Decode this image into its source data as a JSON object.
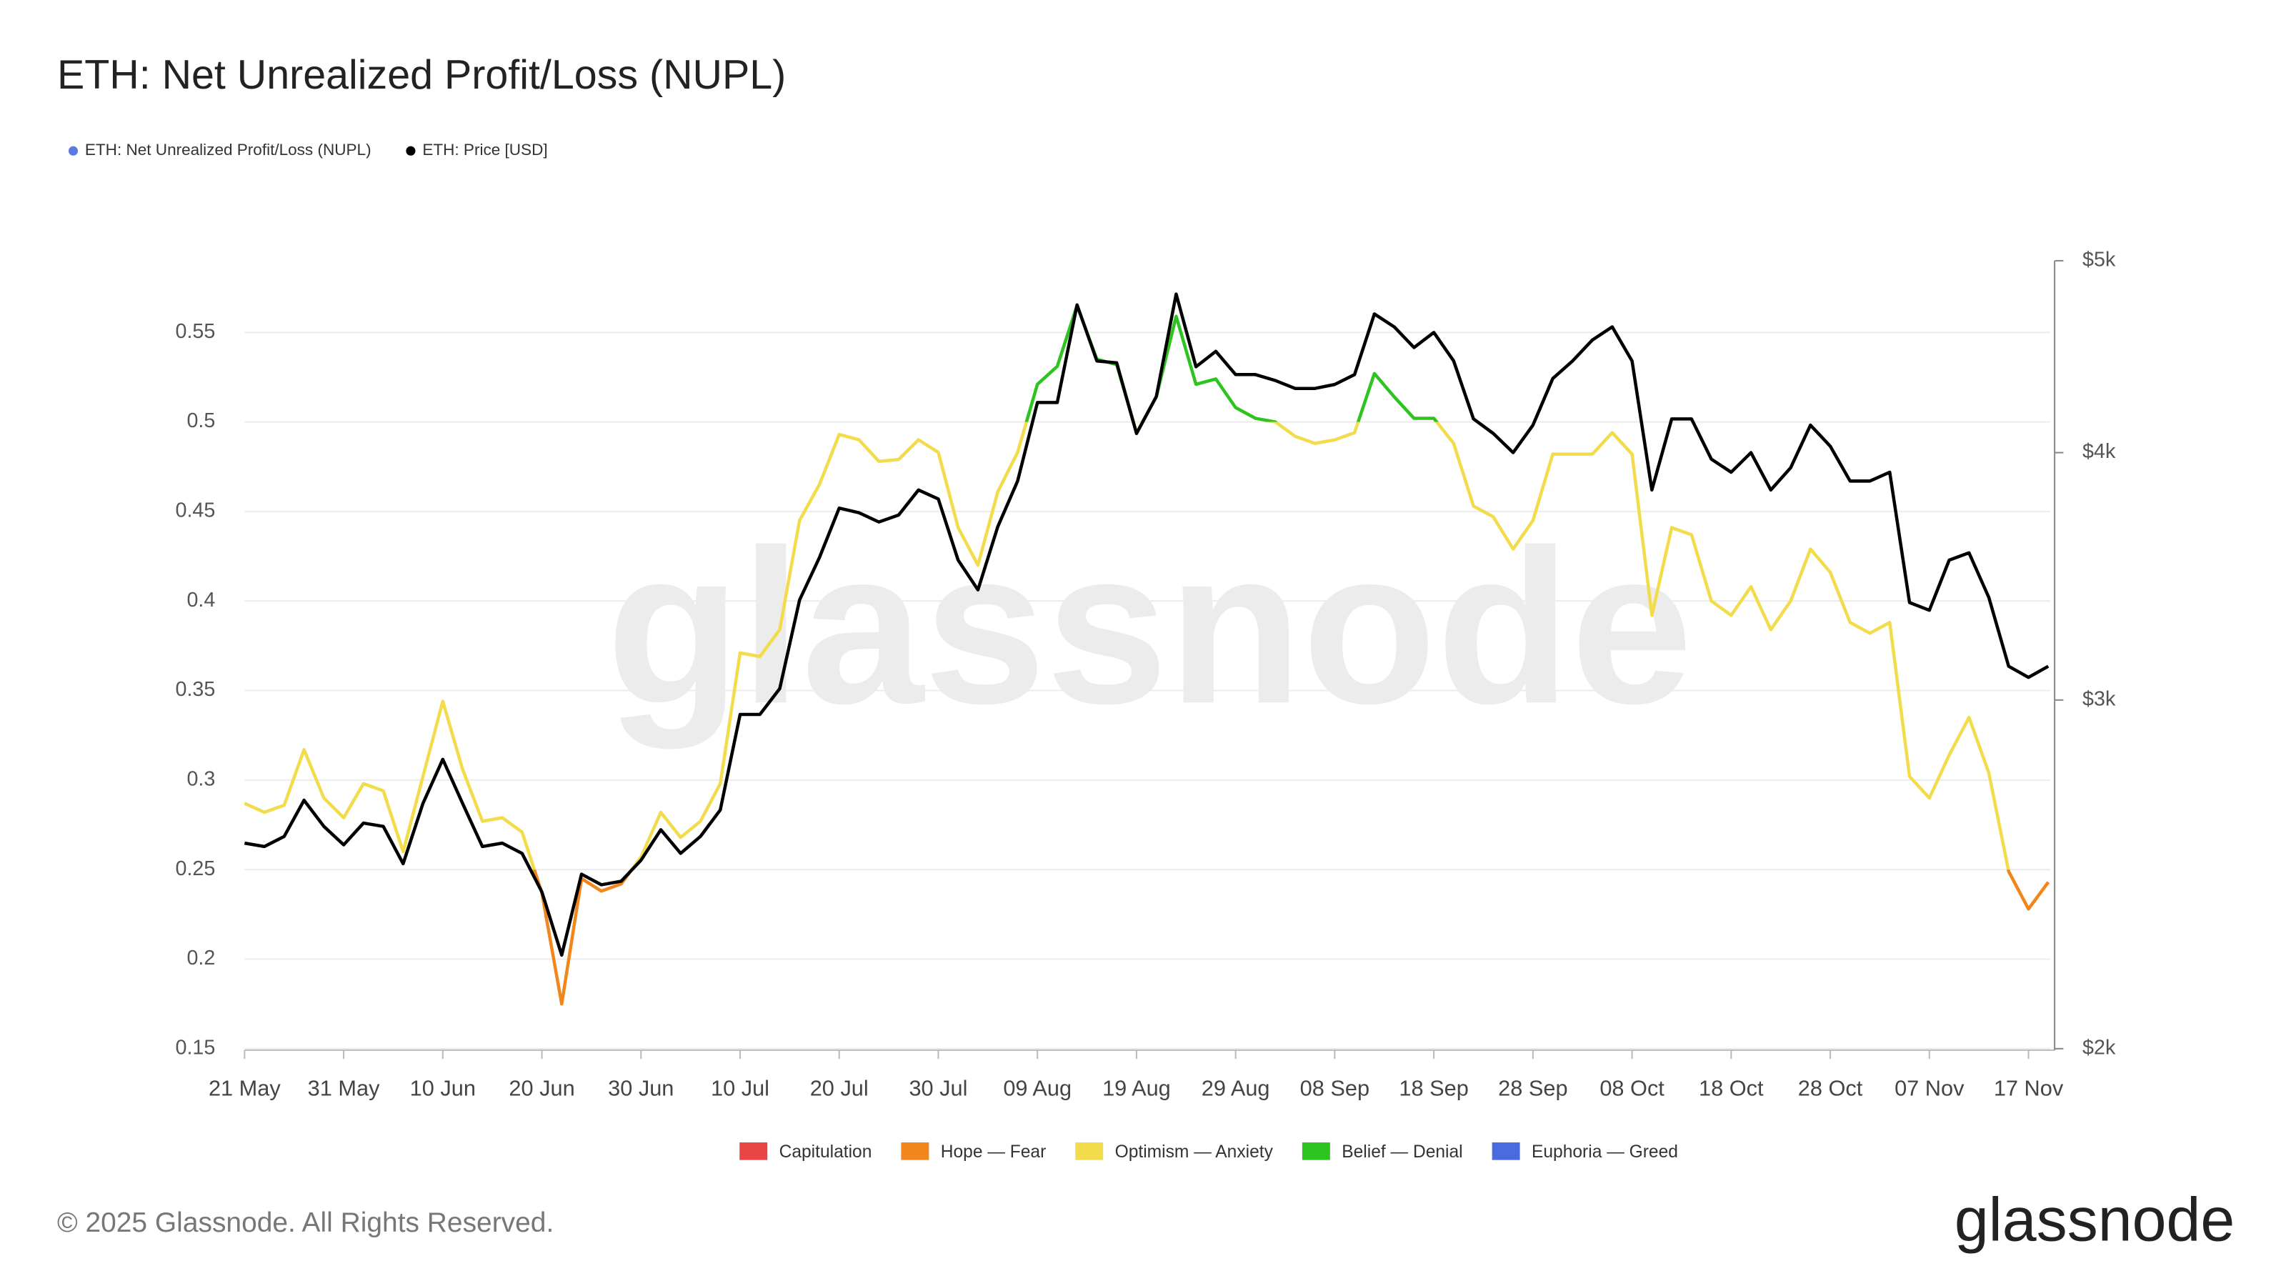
{
  "chart_data": {
    "type": "line",
    "title": "ETH: Net Unrealized Profit/Loss (NUPL)",
    "categories": [
      "21 May",
      null,
      null,
      null,
      null,
      "31 May",
      null,
      null,
      null,
      null,
      "10 Jun",
      null,
      null,
      null,
      null,
      "20 Jun",
      null,
      null,
      null,
      null,
      "30 Jun",
      null,
      null,
      null,
      null,
      "10 Jul",
      null,
      null,
      null,
      null,
      "20 Jul",
      null,
      null,
      null,
      null,
      "30 Jul",
      null,
      null,
      null,
      null,
      "09 Aug",
      null,
      null,
      null,
      null,
      "19 Aug",
      null,
      null,
      null,
      null,
      "29 Aug",
      null,
      null,
      null,
      null,
      "08 Sep",
      null,
      null,
      null,
      null,
      "18 Sep",
      null,
      null,
      null,
      null,
      "28 Sep",
      null,
      null,
      null,
      null,
      "08 Oct",
      null,
      null,
      null,
      null,
      "18 Oct",
      null,
      null,
      null,
      null,
      "28 Oct",
      null,
      null,
      null,
      null,
      "07 Nov",
      null,
      null,
      null,
      null,
      "17 Nov",
      null
    ],
    "series": [
      {
        "name": "ETH: Net Unrealized Profit/Loss (NUPL)",
        "color": "#5b7be0",
        "values": [
          0.287,
          0.282,
          0.286,
          0.317,
          0.29,
          0.279,
          0.298,
          0.294,
          0.26,
          0.302,
          0.344,
          0.306,
          0.277,
          0.279,
          0.271,
          0.237,
          0.175,
          0.245,
          0.238,
          0.242,
          0.257,
          0.282,
          0.268,
          0.277,
          0.298,
          0.371,
          0.369,
          0.384,
          0.445,
          0.465,
          0.493,
          0.49,
          0.478,
          0.479,
          0.49,
          0.483,
          0.441,
          0.42,
          0.461,
          0.483,
          0.521,
          0.531,
          0.565,
          0.535,
          0.532,
          0.494,
          0.514,
          0.559,
          0.521,
          0.524,
          0.508,
          0.502,
          0.5,
          0.492,
          0.488,
          0.49,
          0.494,
          0.527,
          0.514,
          0.502,
          0.502,
          0.488,
          0.453,
          0.447,
          0.429,
          0.445,
          0.482,
          0.482,
          0.482,
          0.494,
          0.482,
          0.392,
          0.441,
          0.437,
          0.4,
          0.392,
          0.408,
          0.384,
          0.4,
          0.429,
          0.416,
          0.388,
          0.382,
          0.388,
          0.302,
          0.29,
          0.314,
          0.335,
          0.304,
          0.249,
          0.228,
          0.243
        ]
      },
      {
        "name": "ETH: Price [USD]",
        "color": "#000000",
        "axis": "y2",
        "values": [
          2540,
          2530,
          2560,
          2670,
          2590,
          2535,
          2600,
          2590,
          2480,
          2660,
          2800,
          2660,
          2530,
          2540,
          2510,
          2400,
          2230,
          2450,
          2420,
          2430,
          2490,
          2580,
          2510,
          2560,
          2640,
          2950,
          2950,
          3040,
          3370,
          3540,
          3750,
          3730,
          3690,
          3720,
          3830,
          3790,
          3530,
          3410,
          3670,
          3870,
          4240,
          4240,
          4750,
          4450,
          4440,
          4090,
          4270,
          4810,
          4420,
          4500,
          4380,
          4380,
          4350,
          4310,
          4310,
          4330,
          4380,
          4700,
          4630,
          4520,
          4600,
          4450,
          4160,
          4090,
          4000,
          4130,
          4360,
          4450,
          4560,
          4630,
          4450,
          3830,
          4160,
          4160,
          3970,
          3910,
          4000,
          3830,
          3930,
          4130,
          4030,
          3870,
          3870,
          3910,
          3360,
          3330,
          3530,
          3560,
          3380,
          3120,
          3080,
          3120
        ]
      }
    ],
    "ylim": [
      0.15,
      0.59
    ],
    "yticks": [
      0.15,
      0.2,
      0.25,
      0.3,
      0.35,
      0.4,
      0.45,
      0.5,
      0.55
    ],
    "y2lim": [
      2000,
      5000
    ],
    "y2log": true,
    "y2ticks": [
      {
        "value": 2000,
        "label": "$2k"
      },
      {
        "value": 3000,
        "label": "$3k"
      },
      {
        "value": 4000,
        "label": "$4k"
      },
      {
        "value": 5000,
        "label": "$5k"
      }
    ],
    "grid": true,
    "zones": {
      "names": [
        "Capitulation",
        "Hope — Fear",
        "Optimism — Anxiety",
        "Belief — Denial",
        "Euphoria — Greed"
      ],
      "colors": [
        "#e84545",
        "#f0861c",
        "#f2dc4c",
        "#2ec41f",
        "#4a6be0"
      ],
      "bounds": [
        0,
        0.25,
        0.5,
        0.75
      ]
    },
    "watermark": "glassnode"
  },
  "footer": {
    "copyright": "© 2025 Glassnode. All Rights Reserved.",
    "logo": "glassnode"
  }
}
